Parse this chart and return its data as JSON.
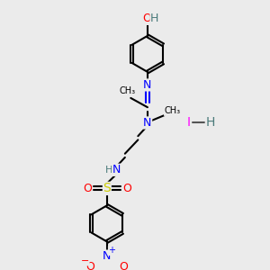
{
  "bg_color": "#ebebeb",
  "atom_colors": {
    "C": "#000000",
    "N": "#0000ff",
    "O": "#ff0000",
    "S": "#cccc00",
    "H": "#4a7a7a",
    "I": "#ff00ff"
  },
  "figsize": [
    3.0,
    3.0
  ],
  "dpi": 100
}
